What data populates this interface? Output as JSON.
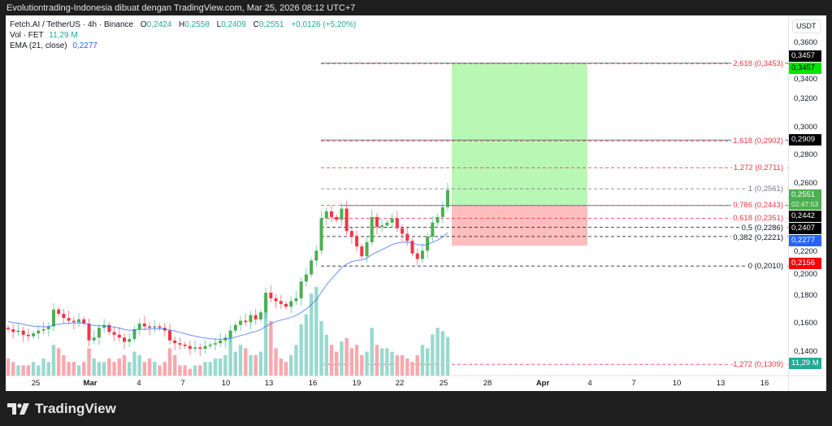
{
  "header": {
    "attribution": "Evolutiontrading-Indonesia dibuat dengan TradingView.com, Mar 25, 2026 08:12 UTC+7"
  },
  "legend": {
    "symbol": "Fetch.AI / TetherUS · 4h · Binance",
    "o_label": "O",
    "o": "0,2424",
    "h_label": "H",
    "h": "0,2558",
    "l_label": "L",
    "l": "0,2409",
    "c_label": "C",
    "c": "0,2551",
    "change": "+0,0126 (+5,20%)",
    "vol_label": "Vol · FET",
    "vol": "11,29 M",
    "ema_label": "EMA (21, close)",
    "ema": "0,2277"
  },
  "price_scale": {
    "currency": "USDT",
    "ticks": [
      "0,3600",
      "0,3400",
      "0,3200",
      "0,3000",
      "0,2800",
      "0,2600",
      "0,2200",
      "0,2000",
      "0,1800",
      "0,1600",
      "0,1400"
    ],
    "tick_values": [
      0.36,
      0.34,
      0.32,
      0.3,
      0.28,
      0.26,
      0.22,
      0.2,
      0.18,
      0.16,
      0.14
    ],
    "badges": [
      {
        "text": "0,3457",
        "value": 0.3457,
        "color": "#000000",
        "offset": -9
      },
      {
        "text": "0,3457",
        "value": 0.3457,
        "color": "#00e600",
        "offset": 4,
        "textcolor": "#000000"
      },
      {
        "text": "0,2909",
        "value": 0.2909,
        "color": "#000000",
        "offset": 0
      },
      {
        "text": "0,2442",
        "value": 0.2442,
        "color": "#000000",
        "offset": 0
      },
      {
        "text": "0,2407",
        "value": 0.2407,
        "color": "#000000",
        "offset": 2
      },
      {
        "text": "0,2277",
        "value": 0.2277,
        "color": "#2962ff",
        "offset": 2
      },
      {
        "text": "0,2156",
        "value": 0.2156,
        "color": "#ff0000",
        "offset": 0
      }
    ],
    "last": {
      "price": "0,2551",
      "countdown": "02:47:53",
      "value": 0.2551,
      "color": "#4caf50"
    },
    "volume_badge": {
      "text": "11,29 M",
      "color": "#22ab94"
    }
  },
  "time_axis": [
    {
      "label": "25",
      "bold": false
    },
    {
      "label": "Mar",
      "bold": true
    },
    {
      "label": "4",
      "bold": false
    },
    {
      "label": "7",
      "bold": false
    },
    {
      "label": "10",
      "bold": false
    },
    {
      "label": "13",
      "bold": false
    },
    {
      "label": "16",
      "bold": false
    },
    {
      "label": "19",
      "bold": false
    },
    {
      "label": "22",
      "bold": false
    },
    {
      "label": "25",
      "bold": false
    },
    {
      "label": "28",
      "bold": false
    },
    {
      "label": "Apr",
      "bold": true
    },
    {
      "label": "4",
      "bold": false
    },
    {
      "label": "7",
      "bold": false
    },
    {
      "label": "10",
      "bold": false
    },
    {
      "label": "13",
      "bold": false
    },
    {
      "label": "16",
      "bold": false
    }
  ],
  "fib_levels": [
    {
      "label": "2,618 (0,3453)",
      "value": 0.3453,
      "color": "#f23645"
    },
    {
      "label": "1,618 (0,2902)",
      "value": 0.2902,
      "color": "#f23645"
    },
    {
      "label": "1,272 (0,2711)",
      "value": 0.2711,
      "color": "#f23645"
    },
    {
      "label": "1 (0,2561)",
      "value": 0.2561,
      "color": "#787b86"
    },
    {
      "label": "0,786 (0,2443)",
      "value": 0.2443,
      "color": "#f23645"
    },
    {
      "label": "0,618 (0,2351)",
      "value": 0.2351,
      "color": "#f23645"
    },
    {
      "label": "0,5 (0,2286)",
      "value": 0.2286,
      "color": "#131722"
    },
    {
      "label": "0,382 (0,2221)",
      "value": 0.2221,
      "color": "#131722"
    },
    {
      "label": "0 (0,2010)",
      "value": 0.201,
      "color": "#131722"
    },
    {
      "label": "-1,272 (0,1309)",
      "value": 0.1309,
      "color": "#f23645"
    }
  ],
  "position": {
    "target": 0.3457,
    "entry": 0.2442,
    "stop": 0.2156,
    "profit_color": "#b9f7b4",
    "loss_color": "#ffbdbd"
  },
  "chart_data": {
    "type": "candlestick",
    "title": "Fetch.AI / TetherUS · 4h · Binance",
    "ylim": [
      0.125,
      0.37
    ],
    "closes": [
      0.156,
      0.154,
      0.155,
      0.152,
      0.151,
      0.153,
      0.155,
      0.156,
      0.158,
      0.17,
      0.167,
      0.164,
      0.162,
      0.161,
      0.163,
      0.16,
      0.148,
      0.15,
      0.157,
      0.159,
      0.154,
      0.152,
      0.15,
      0.147,
      0.149,
      0.156,
      0.16,
      0.158,
      0.157,
      0.158,
      0.157,
      0.155,
      0.148,
      0.146,
      0.145,
      0.144,
      0.142,
      0.143,
      0.142,
      0.144,
      0.145,
      0.146,
      0.148,
      0.15,
      0.155,
      0.159,
      0.162,
      0.161,
      0.166,
      0.163,
      0.168,
      0.182,
      0.178,
      0.176,
      0.174,
      0.172,
      0.176,
      0.178,
      0.19,
      0.195,
      0.205,
      0.212,
      0.235,
      0.24,
      0.236,
      0.234,
      0.242,
      0.226,
      0.222,
      0.215,
      0.208,
      0.218,
      0.236,
      0.229,
      0.23,
      0.232,
      0.235,
      0.228,
      0.224,
      0.219,
      0.21,
      0.206,
      0.212,
      0.222,
      0.232,
      0.236,
      0.243,
      0.2551
    ],
    "volumes_m": [
      5,
      4,
      3,
      3,
      3,
      4,
      3,
      5,
      4,
      9,
      8,
      6,
      4,
      4,
      3,
      4,
      8,
      5,
      4,
      4,
      5,
      4,
      5,
      6,
      4,
      7,
      6,
      4,
      5,
      4,
      3,
      4,
      8,
      6,
      3,
      3,
      2,
      3,
      3,
      4,
      4,
      5,
      5,
      6,
      12,
      7,
      9,
      8,
      6,
      6,
      7,
      22,
      16,
      8,
      5,
      4,
      6,
      9,
      15,
      18,
      24,
      26,
      16,
      12,
      9,
      7,
      10,
      11,
      8,
      9,
      6,
      7,
      14,
      9,
      8,
      8,
      7,
      6,
      6,
      5,
      4,
      6,
      9,
      8,
      12,
      14,
      13,
      11.29
    ],
    "ema_period": 21,
    "ema_last": 0.2277
  }
}
